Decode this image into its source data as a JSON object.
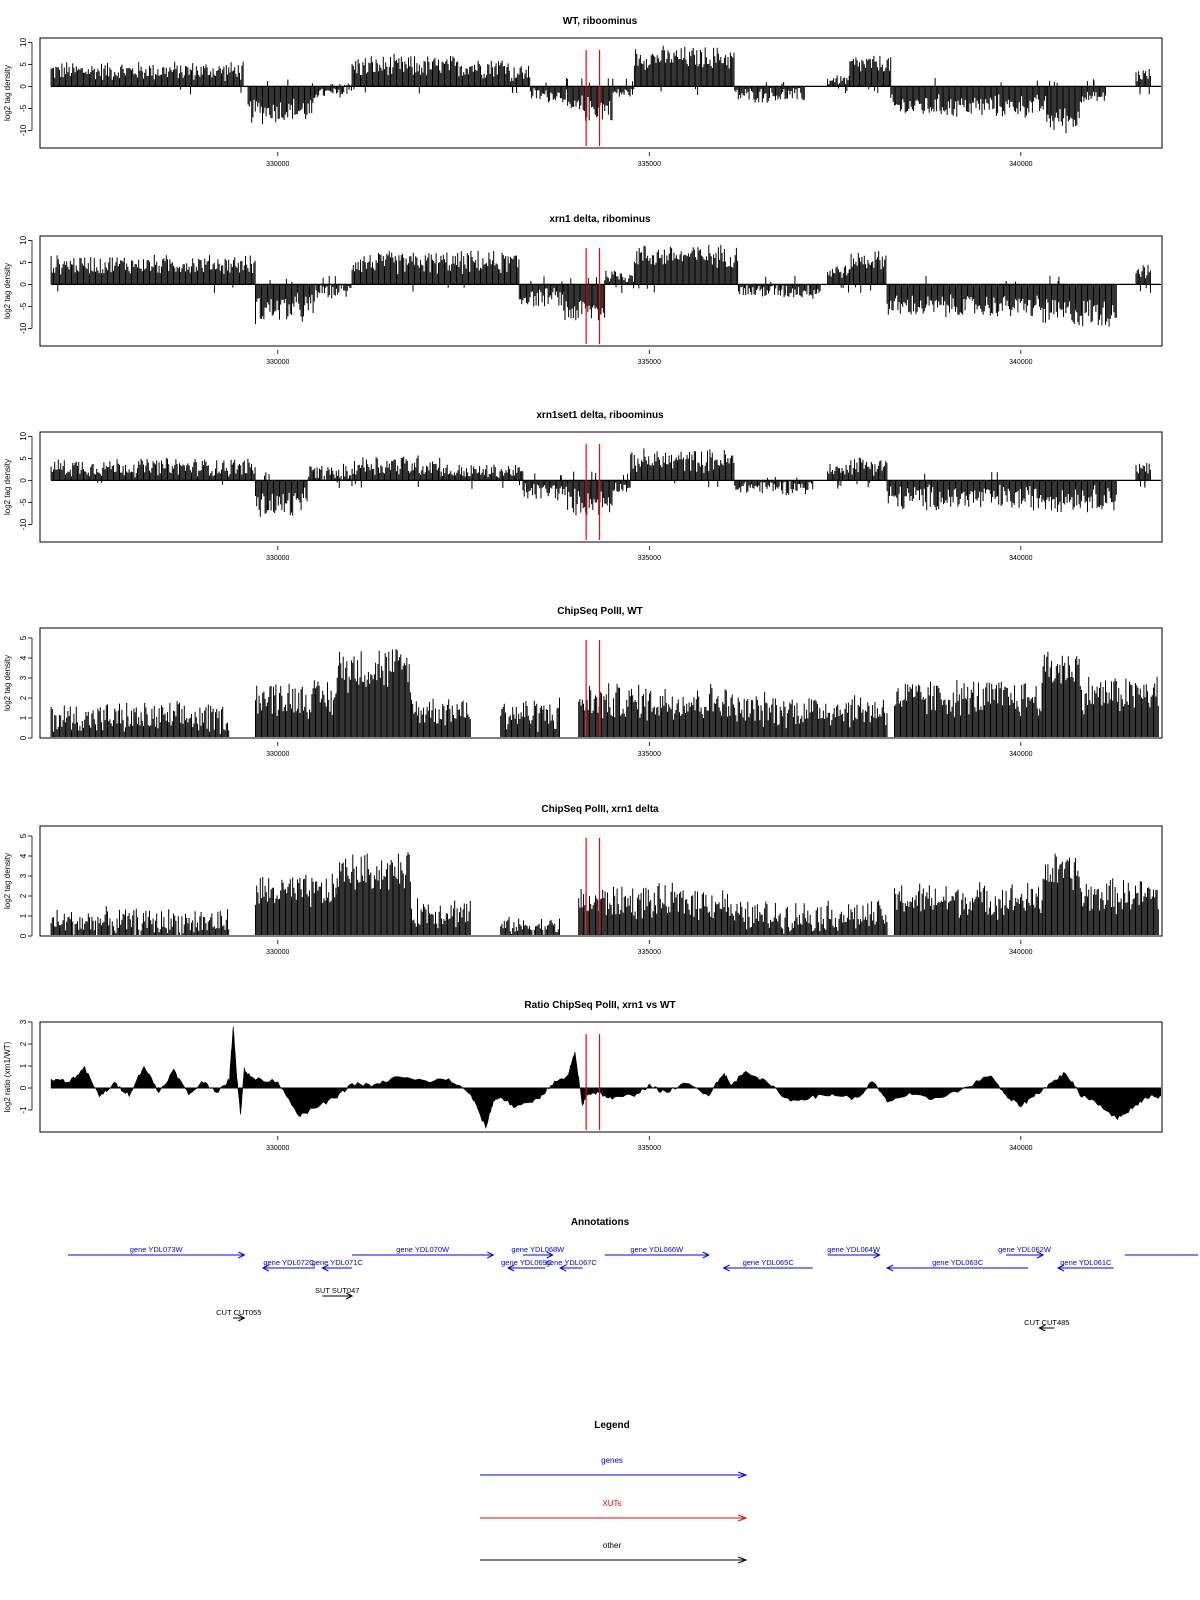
{
  "chart_data": [
    {
      "type": "bar",
      "title": "WT, riboominus",
      "ylabel": "log2 tag density",
      "xlabel": "",
      "xlim": [
        326800,
        341900
      ],
      "ylim": [
        -14,
        11
      ],
      "yticks": [
        -10,
        -5,
        0,
        5,
        10
      ],
      "xticks": [
        {
          "value": 330000,
          "label": "330000"
        },
        {
          "value": 335000,
          "label": "335000"
        },
        {
          "value": 340000,
          "label": "340000"
        }
      ],
      "grid": false,
      "markers": [
        334150,
        334330
      ],
      "segments": [
        {
          "start": 326950,
          "end": 329550,
          "level": 3.5,
          "jitter": 2.5
        },
        {
          "start": 329600,
          "end": 330500,
          "level": -5.5,
          "jitter": 3.5
        },
        {
          "start": 330500,
          "end": 330900,
          "level": -1.5,
          "jitter": 1.5
        },
        {
          "start": 330900,
          "end": 331000,
          "level": 0.5,
          "jitter": 1
        },
        {
          "start": 331000,
          "end": 333100,
          "level": 4.5,
          "jitter": 3
        },
        {
          "start": 333100,
          "end": 333400,
          "level": 3.0,
          "jitter": 2.5
        },
        {
          "start": 333400,
          "end": 333900,
          "level": -2.0,
          "jitter": 2
        },
        {
          "start": 333900,
          "end": 334500,
          "level": -5.0,
          "jitter": 3.5
        },
        {
          "start": 334500,
          "end": 334800,
          "level": -1.5,
          "jitter": 1.5
        },
        {
          "start": 334800,
          "end": 336150,
          "level": 6.5,
          "jitter": 3
        },
        {
          "start": 336150,
          "end": 337100,
          "level": -2.0,
          "jitter": 2
        },
        {
          "start": 337400,
          "end": 337700,
          "level": 1.5,
          "jitter": 1.5
        },
        {
          "start": 337700,
          "end": 338250,
          "level": 5.0,
          "jitter": 2.5
        },
        {
          "start": 338250,
          "end": 340350,
          "level": -4.5,
          "jitter": 3
        },
        {
          "start": 340350,
          "end": 340800,
          "level": -7.5,
          "jitter": 3.5
        },
        {
          "start": 340800,
          "end": 341150,
          "level": -2.5,
          "jitter": 1.5
        },
        {
          "start": 341550,
          "end": 341750,
          "level": 2.5,
          "jitter": 2
        }
      ]
    },
    {
      "type": "bar",
      "title": "xrn1 delta, ribominus",
      "ylabel": "log2 tag density",
      "xlabel": "",
      "xlim": [
        326800,
        341900
      ],
      "ylim": [
        -14,
        11
      ],
      "yticks": [
        -10,
        -5,
        0,
        5,
        10
      ],
      "xticks": [
        {
          "value": 330000,
          "label": "330000"
        },
        {
          "value": 335000,
          "label": "335000"
        },
        {
          "value": 340000,
          "label": "340000"
        }
      ],
      "grid": false,
      "markers": [
        334150,
        334330
      ],
      "segments": [
        {
          "start": 326950,
          "end": 329700,
          "level": 4.5,
          "jitter": 2.5
        },
        {
          "start": 329700,
          "end": 330500,
          "level": -5.5,
          "jitter": 4
        },
        {
          "start": 330500,
          "end": 331000,
          "level": -1.5,
          "jitter": 2
        },
        {
          "start": 331000,
          "end": 333250,
          "level": 5.0,
          "jitter": 3
        },
        {
          "start": 333250,
          "end": 333850,
          "level": -3.0,
          "jitter": 2.5
        },
        {
          "start": 333850,
          "end": 334400,
          "level": -6.0,
          "jitter": 3.5
        },
        {
          "start": 334400,
          "end": 334800,
          "level": 2.0,
          "jitter": 2
        },
        {
          "start": 334800,
          "end": 336200,
          "level": 6.5,
          "jitter": 3
        },
        {
          "start": 336200,
          "end": 337300,
          "level": -1.5,
          "jitter": 2
        },
        {
          "start": 337400,
          "end": 337700,
          "level": 3.0,
          "jitter": 2
        },
        {
          "start": 337700,
          "end": 338200,
          "level": 5.5,
          "jitter": 2.5
        },
        {
          "start": 338200,
          "end": 340300,
          "level": -5.0,
          "jitter": 3
        },
        {
          "start": 340300,
          "end": 341300,
          "level": -6.5,
          "jitter": 4
        },
        {
          "start": 341550,
          "end": 341750,
          "level": 3.0,
          "jitter": 2
        }
      ]
    },
    {
      "type": "bar",
      "title": "xrn1set1 delta, riboominus",
      "ylabel": "log2 tag density",
      "xlabel": "",
      "xlim": [
        326800,
        341900
      ],
      "ylim": [
        -14,
        11
      ],
      "yticks": [
        -10,
        -5,
        0,
        5,
        10
      ],
      "xticks": [
        {
          "value": 330000,
          "label": "330000"
        },
        {
          "value": 335000,
          "label": "335000"
        },
        {
          "value": 340000,
          "label": "340000"
        }
      ],
      "grid": false,
      "markers": [
        334150,
        334330
      ],
      "segments": [
        {
          "start": 326950,
          "end": 329700,
          "level": 3.0,
          "jitter": 2.5
        },
        {
          "start": 329700,
          "end": 330400,
          "level": -5.5,
          "jitter": 4
        },
        {
          "start": 330400,
          "end": 331000,
          "level": 1.5,
          "jitter": 2.5
        },
        {
          "start": 331000,
          "end": 332200,
          "level": 3.5,
          "jitter": 3
        },
        {
          "start": 332200,
          "end": 333300,
          "level": 2.0,
          "jitter": 2
        },
        {
          "start": 333300,
          "end": 333900,
          "level": -2.5,
          "jitter": 2.5
        },
        {
          "start": 333900,
          "end": 334500,
          "level": -5.0,
          "jitter": 3.5
        },
        {
          "start": 334500,
          "end": 334750,
          "level": -1.5,
          "jitter": 1.5
        },
        {
          "start": 334750,
          "end": 336150,
          "level": 4.5,
          "jitter": 3
        },
        {
          "start": 336150,
          "end": 337200,
          "level": -1.5,
          "jitter": 2
        },
        {
          "start": 337400,
          "end": 337600,
          "level": 2.5,
          "jitter": 1.5
        },
        {
          "start": 337600,
          "end": 338200,
          "level": 3.5,
          "jitter": 2.5
        },
        {
          "start": 338200,
          "end": 341300,
          "level": -4.0,
          "jitter": 3.5
        },
        {
          "start": 341550,
          "end": 341750,
          "level": 2.5,
          "jitter": 2
        }
      ]
    },
    {
      "type": "bar",
      "title": "ChipSeq PolII, WT",
      "ylabel": "log2 tag density",
      "xlabel": "",
      "xlim": [
        326800,
        341900
      ],
      "ylim": [
        0,
        5.5
      ],
      "yticks": [
        0,
        1,
        2,
        3,
        4,
        5
      ],
      "xticks": [
        {
          "value": 330000,
          "label": "330000"
        },
        {
          "value": 335000,
          "label": "335000"
        },
        {
          "value": 340000,
          "label": "340000"
        }
      ],
      "grid": false,
      "markers": [
        334150,
        334330
      ],
      "segments": [
        {
          "start": 326950,
          "end": 329350,
          "level": 1.0,
          "jitter": 0.9
        },
        {
          "start": 329700,
          "end": 330800,
          "level": 2.0,
          "jitter": 1.1
        },
        {
          "start": 330800,
          "end": 331800,
          "level": 3.5,
          "jitter": 1.3
        },
        {
          "start": 331800,
          "end": 332600,
          "level": 1.4,
          "jitter": 0.9
        },
        {
          "start": 333000,
          "end": 333800,
          "level": 1.2,
          "jitter": 1
        },
        {
          "start": 334050,
          "end": 336100,
          "level": 1.8,
          "jitter": 1.1
        },
        {
          "start": 336100,
          "end": 338200,
          "level": 1.4,
          "jitter": 1
        },
        {
          "start": 338300,
          "end": 340300,
          "level": 2.0,
          "jitter": 1.1
        },
        {
          "start": 340300,
          "end": 340800,
          "level": 3.5,
          "jitter": 1.2
        },
        {
          "start": 340800,
          "end": 341850,
          "level": 2.2,
          "jitter": 1.1
        }
      ]
    },
    {
      "type": "bar",
      "title": "ChipSeq PolII, xrn1 delta",
      "ylabel": "log2 tag density",
      "xlabel": "",
      "xlim": [
        326800,
        341900
      ],
      "ylim": [
        0,
        5.5
      ],
      "yticks": [
        0,
        1,
        2,
        3,
        4,
        5
      ],
      "xticks": [
        {
          "value": 330000,
          "label": "330000"
        },
        {
          "value": 335000,
          "label": "335000"
        },
        {
          "value": 340000,
          "label": "340000"
        }
      ],
      "grid": false,
      "markers": [
        334150,
        334330
      ],
      "segments": [
        {
          "start": 326950,
          "end": 329350,
          "level": 0.7,
          "jitter": 0.8
        },
        {
          "start": 329700,
          "end": 330800,
          "level": 2.2,
          "jitter": 1
        },
        {
          "start": 330800,
          "end": 331800,
          "level": 3.2,
          "jitter": 1.1
        },
        {
          "start": 331800,
          "end": 332600,
          "level": 1.2,
          "jitter": 0.9
        },
        {
          "start": 333000,
          "end": 333800,
          "level": 0.5,
          "jitter": 0.5
        },
        {
          "start": 334050,
          "end": 336100,
          "level": 1.7,
          "jitter": 1
        },
        {
          "start": 336100,
          "end": 338200,
          "level": 1.0,
          "jitter": 0.9
        },
        {
          "start": 338300,
          "end": 340300,
          "level": 1.8,
          "jitter": 1
        },
        {
          "start": 340300,
          "end": 340800,
          "level": 3.2,
          "jitter": 1.1
        },
        {
          "start": 340800,
          "end": 341850,
          "level": 2.0,
          "jitter": 1
        }
      ]
    },
    {
      "type": "area",
      "title": "Ratio ChipSeq PolII, xrn1 vs WT",
      "ylabel": "log2 ratio (xrn1/WT)",
      "xlabel": "",
      "xlim": [
        326800,
        341900
      ],
      "ylim": [
        -2,
        3
      ],
      "yticks": [
        -1,
        0,
        1,
        2,
        3
      ],
      "xticks": [
        {
          "value": 330000,
          "label": "330000"
        },
        {
          "value": 335000,
          "label": "335000"
        },
        {
          "value": 340000,
          "label": "340000"
        }
      ],
      "grid": false,
      "markers": [
        334150,
        334330
      ],
      "x": [
        326950,
        327200,
        327400,
        327600,
        327800,
        328000,
        328200,
        328400,
        328600,
        328800,
        329000,
        329200,
        329350,
        329400,
        329450,
        329500,
        329550,
        329600,
        329700,
        330000,
        330300,
        330500,
        330800,
        331000,
        331300,
        331600,
        332000,
        332300,
        332600,
        332800,
        332900,
        333000,
        333200,
        333500,
        333700,
        333900,
        334000,
        334100,
        334150,
        334300,
        334500,
        334800,
        335000,
        335200,
        335500,
        335800,
        336000,
        336100,
        336300,
        336600,
        336900,
        337200,
        337500,
        337800,
        338000,
        338200,
        338500,
        338800,
        339200,
        339600,
        339800,
        340000,
        340200,
        340400,
        340600,
        340800,
        341000,
        341300,
        341500,
        341700,
        341900
      ],
      "y": [
        0.4,
        0.3,
        0.9,
        -0.4,
        0.2,
        -0.3,
        1.0,
        -0.2,
        0.8,
        -0.3,
        0.3,
        -0.2,
        0.4,
        2.8,
        0.5,
        -1.2,
        0.9,
        0.6,
        0.4,
        0.3,
        -1.3,
        -0.9,
        -0.4,
        0.2,
        0.1,
        0.5,
        0.3,
        0.4,
        -0.3,
        -1.8,
        -0.6,
        -0.4,
        -0.9,
        -0.5,
        0.2,
        0.5,
        1.6,
        -0.8,
        -0.3,
        -0.2,
        -0.5,
        -0.3,
        0.1,
        -0.2,
        0.2,
        -0.3,
        0.7,
        0.1,
        0.8,
        0.2,
        -0.6,
        -0.4,
        -0.3,
        -0.5,
        0.3,
        -0.6,
        -0.3,
        -0.5,
        -0.1,
        0.6,
        -0.4,
        -0.8,
        -0.3,
        0.2,
        0.7,
        -0.3,
        -0.6,
        -1.4,
        -0.9,
        -0.4,
        -0.4
      ]
    }
  ],
  "annotations": {
    "title": "Annotations",
    "features": [
      {
        "label": "gene YDL073W",
        "kind": "gene",
        "start": 326600,
        "end": 329550,
        "strand": "+",
        "row": 0
      },
      {
        "label": "gene YDL072C",
        "kind": "gene",
        "start": 329800,
        "end": 330500,
        "strand": "-",
        "row": 1
      },
      {
        "label": "gene YDL071C",
        "kind": "gene",
        "start": 330600,
        "end": 331000,
        "strand": "-",
        "row": 1
      },
      {
        "label": "gene YDL070W",
        "kind": "gene",
        "start": 331000,
        "end": 332900,
        "strand": "+",
        "row": 0
      },
      {
        "label": "gene YDL068W",
        "kind": "gene",
        "start": 333300,
        "end": 333700,
        "strand": "+",
        "row": 0
      },
      {
        "label": "gene YDL069C",
        "kind": "gene",
        "start": 333100,
        "end": 333600,
        "strand": "-",
        "row": 1
      },
      {
        "label": "gene YDL067C",
        "kind": "gene",
        "start": 333800,
        "end": 334100,
        "strand": "-",
        "row": 1
      },
      {
        "label": "gene YDL066W",
        "kind": "gene",
        "start": 334400,
        "end": 335800,
        "strand": "+",
        "row": 0
      },
      {
        "label": "gene YDL065C",
        "kind": "gene",
        "start": 336000,
        "end": 337200,
        "strand": "-",
        "row": 1
      },
      {
        "label": "gene YDL064W",
        "kind": "gene",
        "start": 337400,
        "end": 338100,
        "strand": "+",
        "row": 0
      },
      {
        "label": "gene YDL063C",
        "kind": "gene",
        "start": 338200,
        "end": 340100,
        "strand": "-",
        "row": 1
      },
      {
        "label": "gene YDL062W",
        "kind": "gene",
        "start": 339800,
        "end": 340300,
        "strand": "+",
        "row": 0
      },
      {
        "label": "gene YDL061C",
        "kind": "gene",
        "start": 340500,
        "end": 341250,
        "strand": "-",
        "row": 1
      },
      {
        "label": "",
        "kind": "gene",
        "start": 341400,
        "end": 342500,
        "strand": "+",
        "row": 0
      },
      {
        "label": "SUT SUT047",
        "kind": "other",
        "start": 330600,
        "end": 331000,
        "strand": "+",
        "row": 2
      },
      {
        "label": "CUT CUT055",
        "kind": "other",
        "start": 329400,
        "end": 329550,
        "strand": "+",
        "row": 3
      },
      {
        "label": "CUT CUT485",
        "kind": "other",
        "start": 340250,
        "end": 340450,
        "strand": "-",
        "row": 4
      }
    ]
  },
  "legend": {
    "title": "Legend",
    "items": [
      {
        "label": "genes",
        "color": "#0000ff"
      },
      {
        "label": "XUTs",
        "color": "#ff0000"
      },
      {
        "label": "other",
        "color": "#000000"
      }
    ]
  },
  "colors": {
    "marker": "#ff0000",
    "bars": "#000000",
    "gene": "#0000ff",
    "xut": "#ff0000",
    "other": "#000000"
  }
}
